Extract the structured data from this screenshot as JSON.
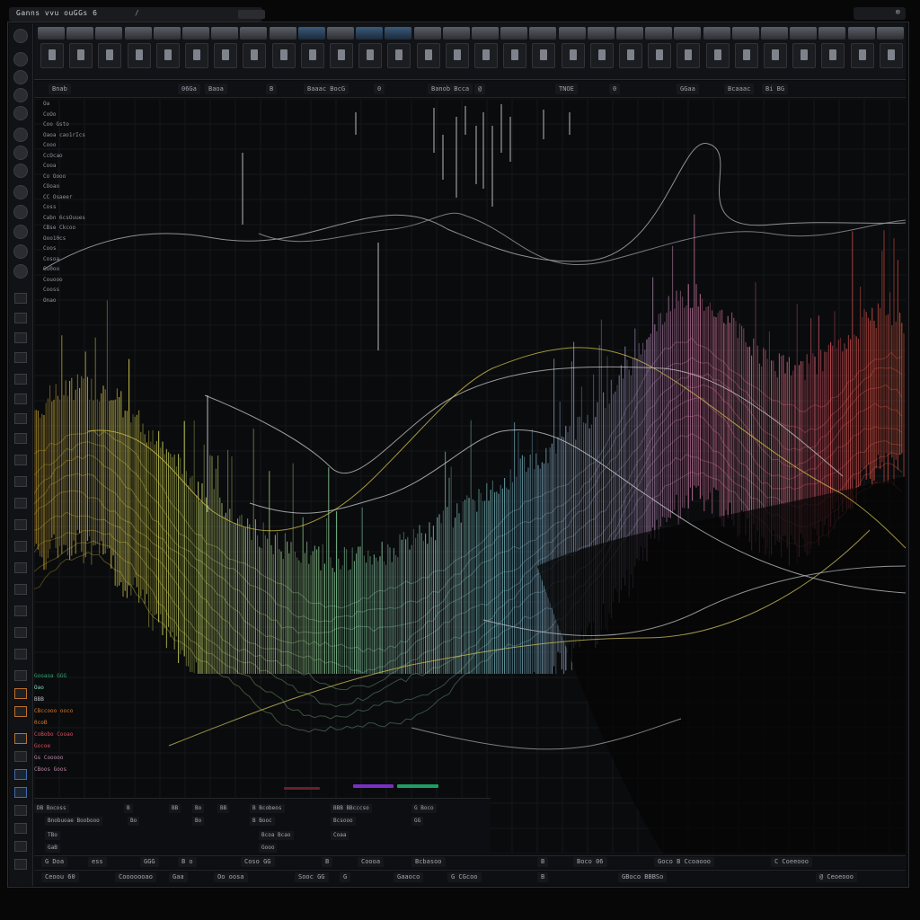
{
  "window": {
    "title": "Ganns vvu ouGGs  6",
    "title_mark": "/",
    "window_controls": "⊗"
  },
  "toolbar": {
    "tool_count": 30,
    "accent_color": "#3b5a7a"
  },
  "subbar": {
    "items": [
      "Bnab",
      "06Ga",
      "Baoa",
      "B",
      "Baaac  BocG",
      "0",
      "Banob  Bcca",
      "@",
      "TNOE",
      "0",
      "GGaa",
      "Bcaaac",
      "Bi  BG"
    ]
  },
  "tracks": {
    "labels": [
      "Oa",
      "CoOo",
      "Coo Gsto",
      "Oaoa cao1rIcs",
      "Cooo",
      "CcOcao",
      "Cooa",
      "Co Oooo",
      "COoao",
      "CC Osaeer",
      "Coss",
      "Cabn 6csOuues",
      "CBse Ckcoo",
      "Ooo10cs",
      "Coos",
      "Cosoa",
      "Gu0oo",
      "Couooo",
      "Cooss",
      "Onao"
    ]
  },
  "lower_panel": {
    "rows": [
      {
        "label": "Gooaoa GGG",
        "color": "#2fa86e"
      },
      {
        "label": "Oao",
        "color": "#7fd7b1"
      },
      {
        "label": "BBB",
        "color": "#b9bcc2"
      },
      {
        "label": "CBccooo ooco",
        "color": "#d37a2d"
      },
      {
        "label": "0coB",
        "color": "#d37a2d"
      },
      {
        "label": "CoBobo Cooao",
        "color": "#d94b5c"
      },
      {
        "label": "Gocoe",
        "color": "#d94b5c"
      },
      {
        "label": "Gs Cooooo",
        "color": "#b888a8"
      },
      {
        "label": "CBoos Goos",
        "color": "#b888a8"
      }
    ]
  },
  "bottom_table": {
    "row1": [
      "DB Bocoss",
      "B",
      "BB",
      "Bo",
      "BB",
      "B Bcobeos",
      "BBB  BBcccso",
      "G Boco"
    ],
    "row2": [
      "Bnobuoae Boobooo",
      "Bo",
      "Bo",
      "B Booc",
      "Bcsooo",
      "GG"
    ],
    "row3": [
      "TBo",
      "Bcoa  Bcao",
      "Coaa"
    ],
    "row4": [
      "GaB",
      "Gooo"
    ]
  },
  "status": {
    "items": [
      "G Doa",
      "ess",
      "GGG",
      "B  o",
      "Coso  GG",
      "B",
      "Coooa",
      "Bcbasoo",
      "B",
      "Boco 06",
      "Goco B Ccoaooo",
      "C Coeeooo"
    ],
    "items2": [
      "Ceoou  60",
      "Cooooooao",
      "Gaa",
      "Oo  oosa",
      "Sooc  GG",
      "G",
      "Gaaoco",
      "G  CGcoo",
      "B",
      "GBoco  BBBSo",
      "@ Ceoeooo"
    ]
  },
  "meters": {
    "violet": "#7a2fc4",
    "green": "#1f9d63",
    "blue": "#3355a8"
  },
  "spectrum": {
    "gradient_colors": [
      "#c9a12d",
      "#d8d24f",
      "#7fbf8f",
      "#7ab8c8",
      "#6a8db4",
      "#e07aa2",
      "#e25a6a",
      "#e8573a"
    ]
  }
}
